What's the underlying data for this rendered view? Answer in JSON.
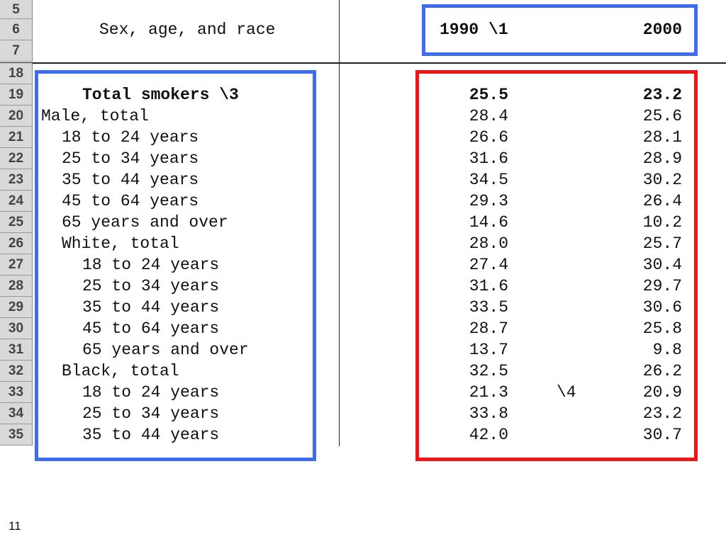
{
  "row_numbers": [
    "5",
    "6",
    "7",
    "18",
    "19",
    "20",
    "21",
    "22",
    "23",
    "24",
    "25",
    "26",
    "27",
    "28",
    "29",
    "30",
    "31",
    "32",
    "33",
    "34",
    "35"
  ],
  "header": {
    "label": "Sex, age, and race",
    "years": [
      "1990 \\1",
      "2000"
    ]
  },
  "rows": [
    {
      "label": "Total smokers \\3",
      "v1990": "25.5",
      "v2000": "23.2"
    },
    {
      "label": "Male, total",
      "v1990": "28.4",
      "v2000": "25.6"
    },
    {
      "label": "18 to 24 years",
      "v1990": "26.6",
      "v2000": "28.1"
    },
    {
      "label": "25 to 34 years",
      "v1990": "31.6",
      "v2000": "28.9"
    },
    {
      "label": "35 to 44 years",
      "v1990": "34.5",
      "v2000": "30.2"
    },
    {
      "label": "45 to 64 years",
      "v1990": "29.3",
      "v2000": "26.4"
    },
    {
      "label": "65 years and over",
      "v1990": "14.6",
      "v2000": "10.2"
    },
    {
      "label": "White, total",
      "v1990": "28.0",
      "v2000": "25.7"
    },
    {
      "label": "18 to 24 years",
      "v1990": "27.4",
      "v2000": "30.4"
    },
    {
      "label": "25 to 34 years",
      "v1990": "31.6",
      "v2000": "29.7"
    },
    {
      "label": "35 to 44 years",
      "v1990": "33.5",
      "v2000": "30.6"
    },
    {
      "label": "45 to 64 years",
      "v1990": "28.7",
      "v2000": "25.8"
    },
    {
      "label": "65 years and over",
      "v1990": "13.7",
      "v2000": "9.8"
    },
    {
      "label": "Black, total",
      "v1990": "32.5",
      "v2000": "26.2"
    },
    {
      "label": "18 to 24 years",
      "v1990": "21.3",
      "note": "\\4",
      "v2000": "20.9"
    },
    {
      "label": "25 to 34 years",
      "v1990": "33.8",
      "v2000": "23.2"
    },
    {
      "label": "35 to 44 years",
      "v1990": "42.0",
      "v2000": "30.7"
    }
  ],
  "page_number": "11"
}
